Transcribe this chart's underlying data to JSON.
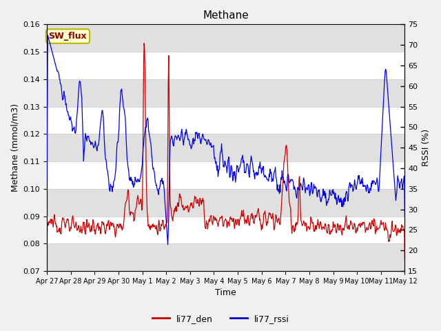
{
  "title": "Methane",
  "ylabel_left": "Methane (mmol/m3)",
  "ylabel_right": "RSSI (%)",
  "xlabel": "Time",
  "ylim_left": [
    0.07,
    0.16
  ],
  "ylim_right": [
    15,
    75
  ],
  "yticks_left": [
    0.07,
    0.08,
    0.09,
    0.1,
    0.11,
    0.12,
    0.13,
    0.14,
    0.15,
    0.16
  ],
  "yticks_right": [
    15,
    20,
    25,
    30,
    35,
    40,
    45,
    50,
    55,
    60,
    65,
    70,
    75
  ],
  "xtick_labels": [
    "Apr 27",
    "Apr 28",
    "Apr 29",
    "Apr 30",
    "May 1",
    "May 2",
    "May 3",
    "May 4",
    "May 5",
    "May 6",
    "May 7",
    "May 8",
    "May 9",
    "May 10",
    "May 11",
    "May 12"
  ],
  "bg_color": "#f0f0f0",
  "plot_bg_color": "#ffffff",
  "band_color_dark": "#e0e0e0",
  "band_color_light": "#ebebeb",
  "legend_entries": [
    "li77_den",
    "li77_rssi"
  ],
  "legend_colors": [
    "#cc0000",
    "#0000cc"
  ],
  "annotation_text": "SW_flux",
  "annotation_bg": "#ffffcc",
  "annotation_border": "#b8b800",
  "line_color_red": "#cc0000",
  "line_color_blue": "#0000ee",
  "grid_color": "#cccccc",
  "tick_label_size": 8,
  "title_fontsize": 11,
  "axis_label_fontsize": 9
}
